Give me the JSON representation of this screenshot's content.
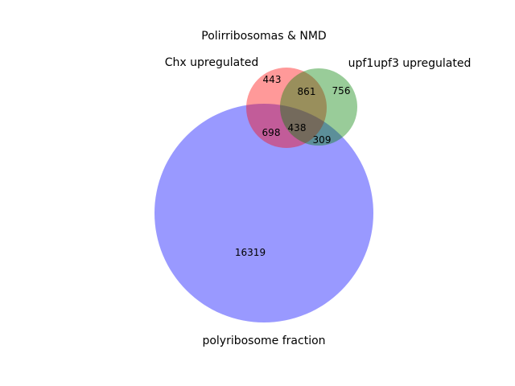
{
  "title": "Polirribosomas & NMD",
  "sets": [
    {
      "label": "Chx upregulated",
      "color": "#ff0000"
    },
    {
      "label": "upf1upf3 upregulated",
      "color": "#008000"
    },
    {
      "label": "polyribosome fraction",
      "color": "#0000ff"
    }
  ],
  "fill_opacity": 0.4,
  "regions": {
    "chx_only": "443",
    "upf_only": "756",
    "chx_upf": "861",
    "polyribosome_only": "16319",
    "chx_polyribosome": "698",
    "upf_polyribosome": "309",
    "all_three": "438"
  }
}
